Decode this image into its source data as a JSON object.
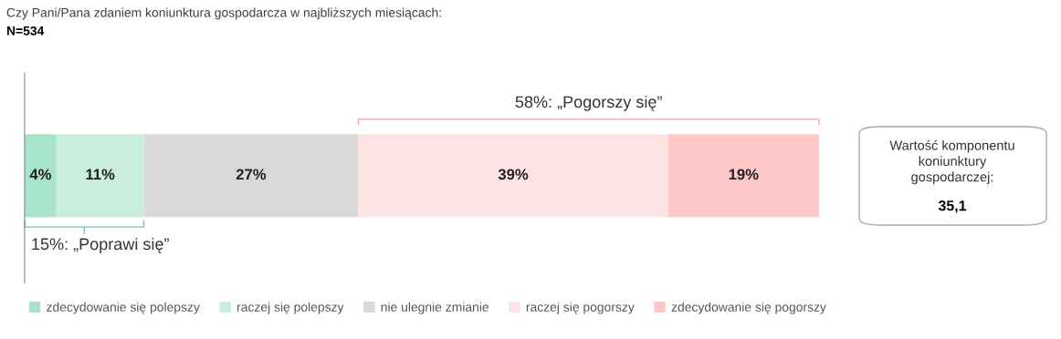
{
  "chart_data": {
    "type": "bar",
    "stacked": true,
    "orientation": "horizontal",
    "title": "Czy Pani/Pana zdaniem koniunktura gospodarcza w najbliższych miesiącach:",
    "subtitle": "N=534",
    "categories": [
      null
    ],
    "series": [
      {
        "name": "zdecydowanie się polepszy",
        "color": "#a8e4c9",
        "values": [
          4
        ],
        "value_labels": [
          "4%"
        ]
      },
      {
        "name": "raczej się polepszy",
        "color": "#c9eedd",
        "values": [
          11
        ],
        "value_labels": [
          "11%"
        ]
      },
      {
        "name": "nie ulegnie zmianie",
        "color": "#d9d9d9",
        "values": [
          27
        ],
        "value_labels": [
          "27%"
        ]
      },
      {
        "name": "raczej się pogorszy",
        "color": "#fde3e3",
        "values": [
          39
        ],
        "value_labels": [
          "39%"
        ]
      },
      {
        "name": "zdecydowanie się pogorszy",
        "color": "#fdc8c7",
        "values": [
          19
        ],
        "value_labels": [
          "19%"
        ]
      }
    ],
    "annotations": [
      "58%: „Pogorszy się”",
      "15%: „Poprawi się”",
      "Wartość komponentu\nkoniunktury\ngospodarczej:\n35,1"
    ],
    "legend": "bottom"
  }
}
